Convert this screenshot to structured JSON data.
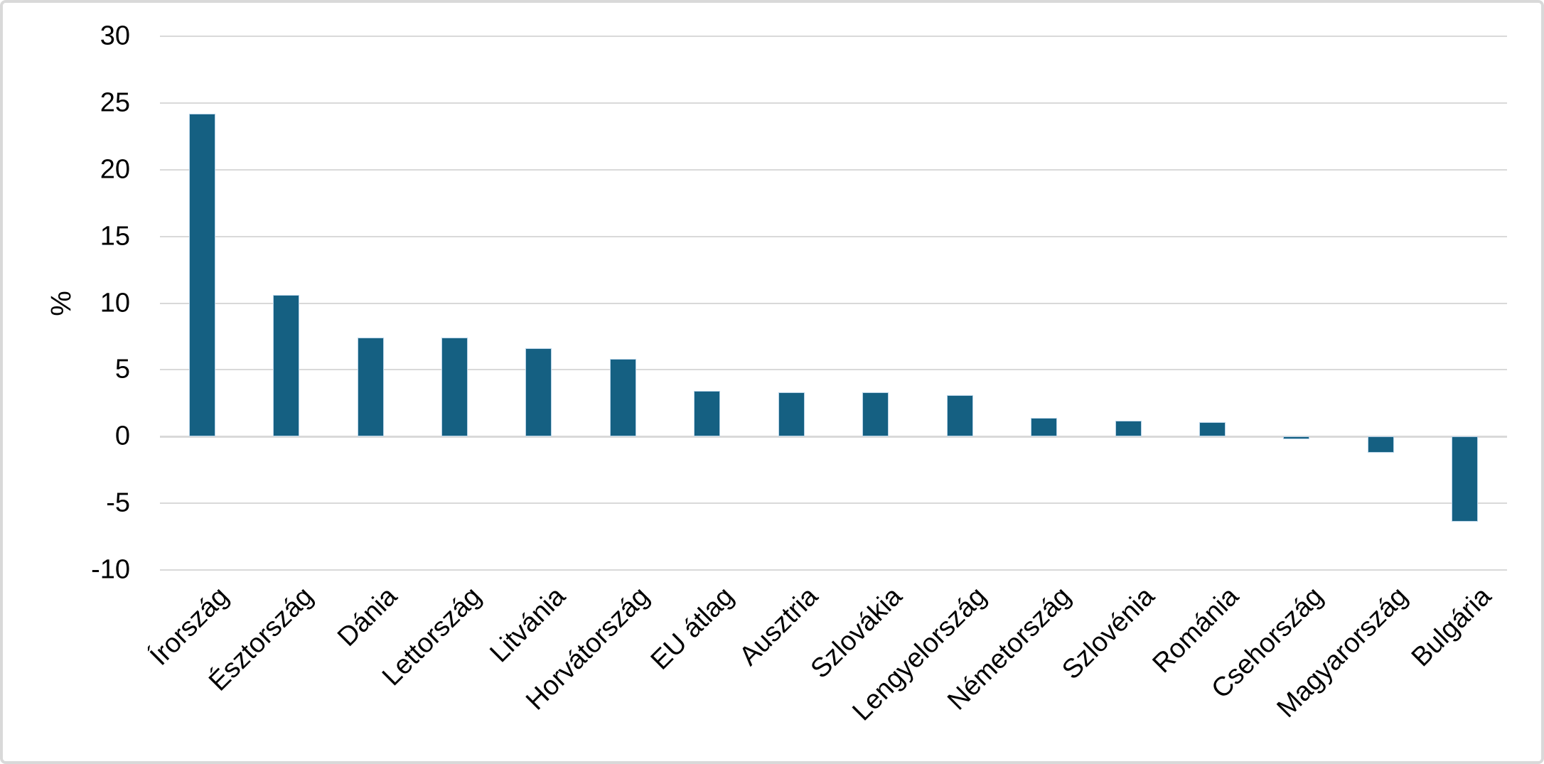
{
  "chart_data": {
    "type": "bar",
    "title": "",
    "xlabel": "",
    "ylabel": "%",
    "categories": [
      "Írország",
      "Észtország",
      "Dánia",
      "Lettország",
      "Litvánia",
      "Horvátország",
      "EU átlag",
      "Ausztria",
      "Szlovákia",
      "Lengyelország",
      "Németország",
      "Szlovénia",
      "Románia",
      "Csehország",
      "Magyarország",
      "Bulgária"
    ],
    "values": [
      24.2,
      10.6,
      7.4,
      7.4,
      6.6,
      5.8,
      3.4,
      3.3,
      3.3,
      3.1,
      1.4,
      1.2,
      1.1,
      -0.2,
      -1.2,
      -6.4
    ],
    "ylim": [
      -10,
      30
    ],
    "ytick_step": 5,
    "yticks": [
      30,
      25,
      20,
      15,
      10,
      5,
      0,
      -5,
      -10
    ],
    "grid": true,
    "legend": "none",
    "x_label_rotation_deg": 45,
    "colors": {
      "bar_fill": "#156082",
      "bar_edge": "#b7d3e8",
      "gridline": "#d9d9d9",
      "axis_line": "#d9d9d9",
      "text": "#000000",
      "background": "#ffffff",
      "frame_border": "#d9d9d9"
    }
  }
}
